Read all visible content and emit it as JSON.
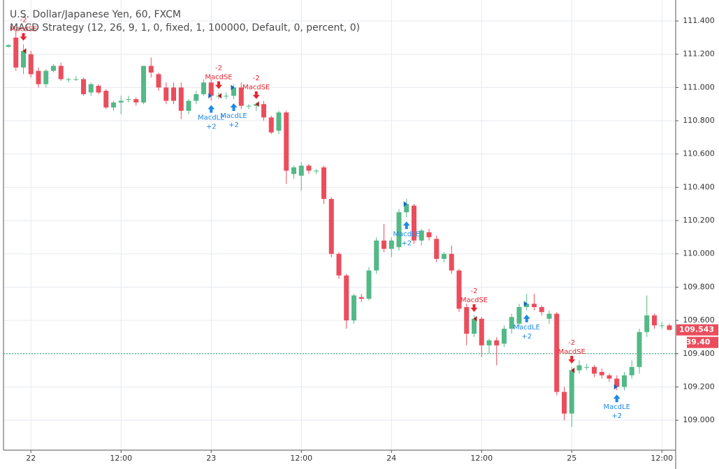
{
  "chart_data": {
    "type": "candlestick",
    "title": "U.S. Dollar/Japanese Yen, 60, FXCM",
    "subtitle": "MACD Strategy (12, 26, 9, 1, 0, fixed, 1, 100000, Default, 0, percent, 0)",
    "categories": [
      null,
      null,
      null,
      "22",
      null,
      null,
      null,
      null,
      null,
      null,
      null,
      null,
      null,
      null,
      null,
      "12:00",
      null,
      null,
      null,
      null,
      null,
      null,
      null,
      null,
      null,
      null,
      null,
      "23",
      null,
      null,
      null,
      null,
      null,
      null,
      null,
      null,
      null,
      null,
      null,
      "12:00",
      null,
      null,
      null,
      null,
      null,
      null,
      null,
      null,
      null,
      null,
      null,
      "24",
      null,
      null,
      null,
      null,
      null,
      null,
      null,
      null,
      null,
      null,
      null,
      "12:00",
      null,
      null,
      null,
      null,
      null,
      null,
      null,
      null,
      null,
      null,
      null,
      "25",
      null,
      null,
      null,
      null,
      null,
      null,
      null,
      null,
      null,
      null,
      null,
      "12:00",
      null
    ],
    "open": [
      111.245,
      111.3,
      111.12,
      111.2,
      111.1,
      111.02,
      111.1,
      111.13,
      111.05,
      111.05,
      111.05,
      110.97,
      111.01,
      110.98,
      110.88,
      110.91,
      110.93,
      110.93,
      110.91,
      111.13,
      111.08,
      111.0,
      111.0,
      111.0,
      110.86,
      110.92,
      110.96,
      111.03,
      110.95,
      110.95,
      110.95,
      111.0,
      110.89,
      110.89,
      110.9,
      110.82,
      110.74,
      110.85,
      110.48,
      110.47,
      110.53,
      110.5,
      110.52,
      110.33,
      110.0,
      109.87,
      109.6,
      109.74,
      109.73,
      109.9,
      110.08,
      110.03,
      110.04,
      110.25,
      110.29,
      110.08,
      110.13,
      110.09,
      109.97,
      110.0,
      109.9,
      109.68,
      109.52,
      109.61,
      109.45,
      109.48,
      109.46,
      109.55,
      109.58,
      109.68,
      109.7,
      109.68,
      109.61,
      109.64,
      109.17,
      109.04,
      109.3,
      109.32,
      109.32,
      109.29,
      109.27,
      109.25,
      109.2,
      109.27,
      109.32,
      109.53,
      109.63,
      109.57,
      109.57
    ],
    "high": [
      111.26,
      111.35,
      111.26,
      111.22,
      111.12,
      111.11,
      111.14,
      111.15,
      111.06,
      111.07,
      111.06,
      111.03,
      111.02,
      110.99,
      110.92,
      110.95,
      110.95,
      110.94,
      111.13,
      111.18,
      111.09,
      111.03,
      111.03,
      111.03,
      110.93,
      110.98,
      111.05,
      111.05,
      110.97,
      110.97,
      111.02,
      111.03,
      110.9,
      110.91,
      110.92,
      110.83,
      110.86,
      110.86,
      110.53,
      110.55,
      110.54,
      110.51,
      110.53,
      110.34,
      110.01,
      109.88,
      109.76,
      109.76,
      109.92,
      110.1,
      110.18,
      110.1,
      110.27,
      110.33,
      110.3,
      110.15,
      110.15,
      110.11,
      110.01,
      110.05,
      109.91,
      109.7,
      109.63,
      109.62,
      109.49,
      109.5,
      109.57,
      109.64,
      109.7,
      109.76,
      109.76,
      109.69,
      109.66,
      109.65,
      109.2,
      109.32,
      109.36,
      109.34,
      109.33,
      109.31,
      109.28,
      109.27,
      109.29,
      109.36,
      109.55,
      109.75,
      109.64,
      109.59,
      109.58
    ],
    "low": [
      111.24,
      111.1,
      111.08,
      111.06,
      111.0,
      111.0,
      111.09,
      111.04,
      111.03,
      111.04,
      110.95,
      110.95,
      110.96,
      110.87,
      110.86,
      110.84,
      110.91,
      110.89,
      110.9,
      111.06,
      110.98,
      110.9,
      110.9,
      110.81,
      110.84,
      110.9,
      110.95,
      110.92,
      110.93,
      110.93,
      110.93,
      110.87,
      110.87,
      110.86,
      110.8,
      110.72,
      110.72,
      110.42,
      110.45,
      110.38,
      110.48,
      110.48,
      110.3,
      109.98,
      109.85,
      109.55,
      109.58,
      109.71,
      109.72,
      109.88,
      110.01,
      109.98,
      110.02,
      110.22,
      110.06,
      110.05,
      110.08,
      109.95,
      109.95,
      109.88,
      109.65,
      109.45,
      109.5,
      109.38,
      109.4,
      109.33,
      109.44,
      109.52,
      109.56,
      109.66,
      109.66,
      109.63,
      109.58,
      109.15,
      109.0,
      108.96,
      109.28,
      109.3,
      109.26,
      109.25,
      109.23,
      109.18,
      109.18,
      109.25,
      109.28,
      109.5,
      109.55,
      109.55,
      109.54
    ],
    "close": [
      111.255,
      111.12,
      111.22,
      111.08,
      111.02,
      111.1,
      111.13,
      111.05,
      111.05,
      111.05,
      110.96,
      111.02,
      110.97,
      110.88,
      110.91,
      110.92,
      110.93,
      110.91,
      111.13,
      111.09,
      111.0,
      110.92,
      110.92,
      110.86,
      110.92,
      110.96,
      111.03,
      110.95,
      110.95,
      110.95,
      111.0,
      110.89,
      110.89,
      110.9,
      110.82,
      110.73,
      110.85,
      110.5,
      110.52,
      110.53,
      110.5,
      110.5,
      110.33,
      110.0,
      109.87,
      109.6,
      109.75,
      109.73,
      109.9,
      110.08,
      110.03,
      110.08,
      110.25,
      110.3,
      110.08,
      110.14,
      110.1,
      109.97,
      110.0,
      109.9,
      109.67,
      109.52,
      109.61,
      109.45,
      109.48,
      109.45,
      109.55,
      109.62,
      109.68,
      109.7,
      109.68,
      109.65,
      109.64,
      109.17,
      109.04,
      109.3,
      109.33,
      109.32,
      109.28,
      109.27,
      109.25,
      109.2,
      109.27,
      109.32,
      109.53,
      109.63,
      109.57,
      109.57,
      109.543
    ],
    "up_color": "#53b987",
    "down_color": "#eb4d5c",
    "ylim": [
      108.82,
      111.526
    ],
    "yticks": [
      {
        "value": 109.0,
        "label": "109.000"
      },
      {
        "value": 109.2,
        "label": "109.200"
      },
      {
        "value": 109.4,
        "label": "109.400"
      },
      {
        "value": 109.6,
        "label": "109.600"
      },
      {
        "value": 109.8,
        "label": "109.800"
      },
      {
        "value": 110.0,
        "label": "110.000"
      },
      {
        "value": 110.2,
        "label": "110.200"
      },
      {
        "value": 110.4,
        "label": "110.400"
      },
      {
        "value": 110.6,
        "label": "110.600"
      },
      {
        "value": 110.8,
        "label": "110.800"
      },
      {
        "value": 111.0,
        "label": "111.000"
      },
      {
        "value": 111.2,
        "label": "111.200"
      },
      {
        "value": 111.4,
        "label": "111.400"
      }
    ],
    "grid": true,
    "last_price": {
      "value": 109.543,
      "label": "109.543"
    },
    "countdown": "39.40",
    "position_line": 109.4,
    "signals": [
      {
        "index": 2,
        "direction": "down",
        "label": "MacdSE",
        "qty": "-2"
      },
      {
        "index": 27,
        "direction": "up",
        "label": "MacdLE",
        "qty": "+2"
      },
      {
        "index": 28,
        "direction": "down",
        "label": "MacdSE",
        "qty": "-2"
      },
      {
        "index": 30,
        "direction": "up",
        "label": "MacdLE",
        "qty": "+2"
      },
      {
        "index": 33,
        "direction": "down",
        "label": "MacdSE",
        "qty": "-2"
      },
      {
        "index": 53,
        "direction": "up",
        "label": "MacdLE",
        "qty": "+2"
      },
      {
        "index": 62,
        "direction": "down",
        "label": "MacdSE",
        "qty": "-2"
      },
      {
        "index": 69,
        "direction": "up",
        "label": "MacdLE",
        "qty": "+2"
      },
      {
        "index": 75,
        "direction": "down",
        "label": "MacdSE",
        "qty": "-2"
      },
      {
        "index": 81,
        "direction": "up",
        "label": "MacdLE",
        "qty": "+2"
      }
    ]
  }
}
